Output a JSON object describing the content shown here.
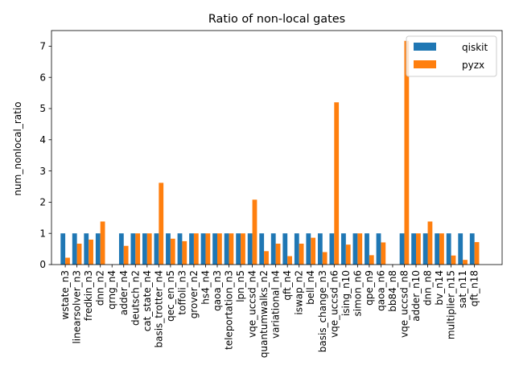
{
  "chart_data": {
    "type": "bar",
    "title": "Ratio of non-local gates",
    "xlabel": "",
    "ylabel": "num_nonlocal_ratio",
    "ylim": [
      0,
      7.5
    ],
    "yticks": [
      "0",
      "1",
      "2",
      "3",
      "4",
      "5",
      "6",
      "7"
    ],
    "legend_position": "top-right",
    "categories": [
      "wstate_n3",
      "linearsolver_n3",
      "fredkin_n3",
      "dnn_n2",
      "qrng_n4",
      "adder_n4",
      "deutsch_n2",
      "cat_state_n4",
      "basis_trotter_n4",
      "qec_en_n5",
      "toffoli_n3",
      "grover_n2",
      "hs4_n4",
      "qaoa_n3",
      "teleportation_n3",
      "lpn_n5",
      "vqe_uccsd_n4",
      "quantumwalks_n2",
      "variational_n4",
      "qft_n4",
      "iswap_n2",
      "bell_n4",
      "basis_change_n3",
      "vqe_uccsd_n6",
      "ising_n10",
      "simon_n6",
      "qpe_n9",
      "qaoa_n6",
      "bb84_n8",
      "vqe_uccsd_n8",
      "adder_n10",
      "dnn_n8",
      "bv_n14",
      "multiplier_n15",
      "sat_n11",
      "qft_n18"
    ],
    "series": [
      {
        "name": "qiskit",
        "color": "#1f77b4",
        "values": [
          1,
          1,
          1,
          1,
          0,
          1,
          1,
          1,
          1,
          1,
          1,
          1,
          1,
          1,
          1,
          1,
          1,
          1,
          1,
          1,
          1,
          1,
          1,
          1,
          1,
          1,
          1,
          1,
          0,
          1,
          1,
          1,
          1,
          1,
          1,
          1
        ]
      },
      {
        "name": "pyzx",
        "color": "#ff7f0e",
        "values": [
          0.22,
          0.67,
          0.8,
          1.38,
          0,
          0.6,
          1,
          1,
          2.62,
          0.83,
          0.75,
          1,
          1,
          1,
          1,
          1,
          2.08,
          0.43,
          0.67,
          0.27,
          0.67,
          0.86,
          0.4,
          5.2,
          0.64,
          1,
          0.3,
          0.71,
          0,
          7.17,
          1,
          1.38,
          1,
          0.29,
          0.15,
          0.72
        ]
      }
    ]
  }
}
